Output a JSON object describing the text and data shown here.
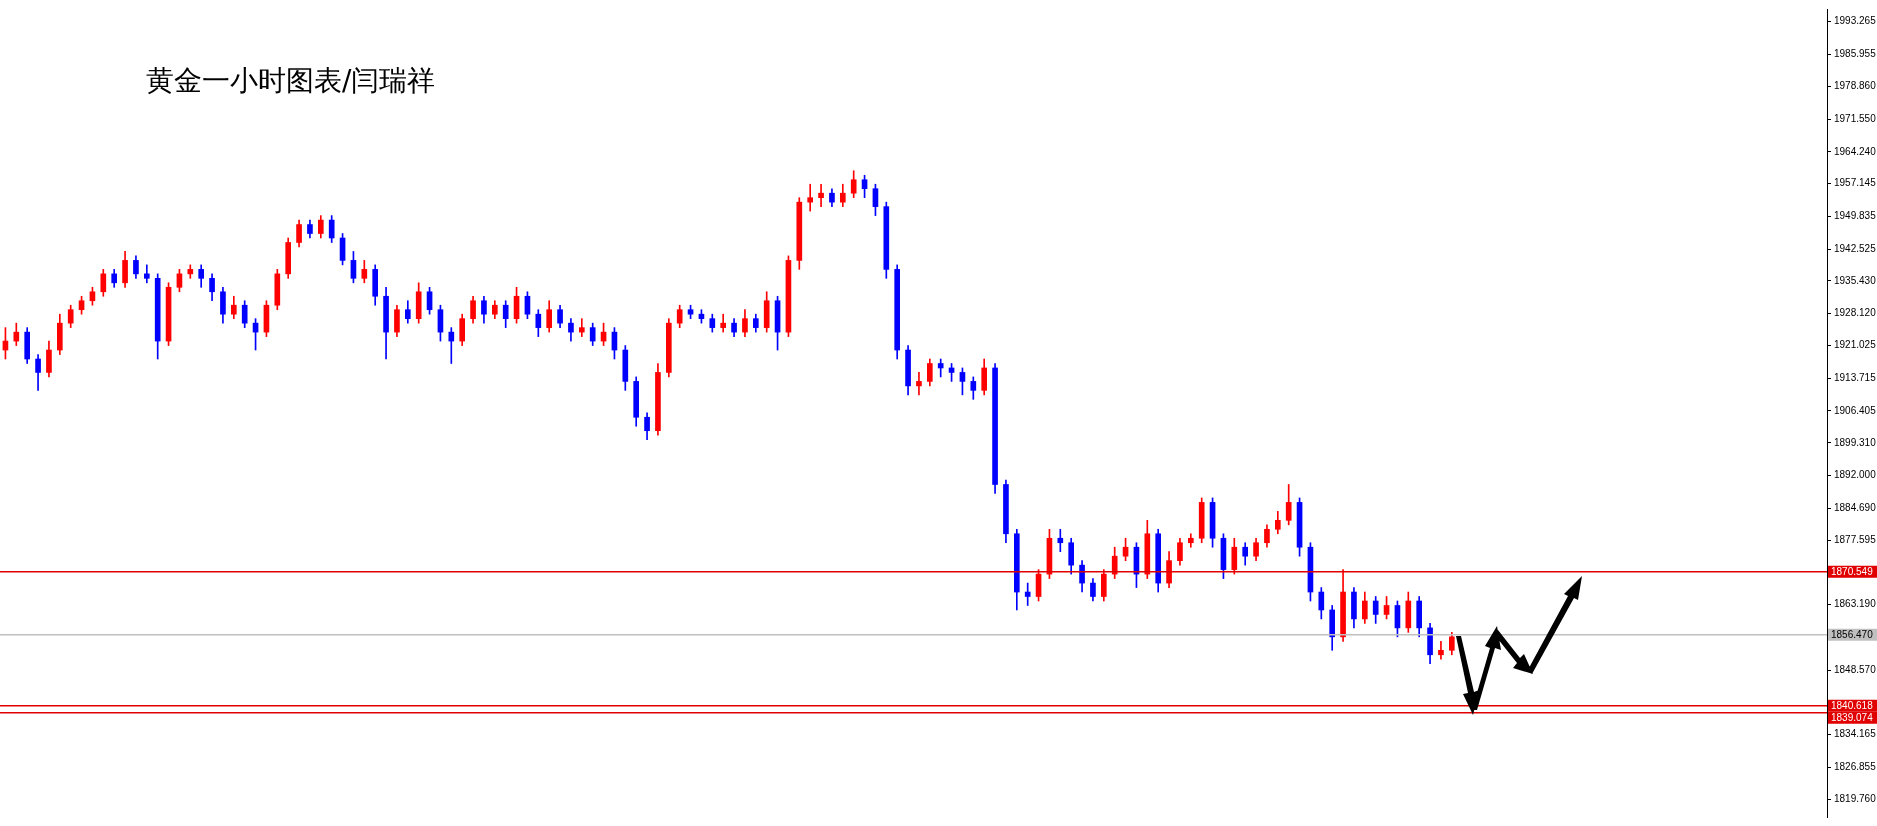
{
  "chart_data": {
    "type": "candlestick",
    "title": "黄金一小时图表/闫瑞祥",
    "categories": [
      null,
      null,
      null,
      null,
      null,
      null,
      null,
      null,
      null,
      null,
      null,
      null,
      null,
      null,
      null,
      null,
      null,
      null,
      null,
      null,
      null,
      null,
      null,
      null,
      null,
      null,
      null,
      null,
      null,
      null,
      null,
      null,
      null,
      null,
      null,
      null,
      null,
      null,
      null,
      null,
      null,
      null,
      null,
      null,
      null,
      null,
      null,
      null,
      null,
      null,
      null,
      null,
      null,
      null,
      null,
      null,
      null,
      null,
      null,
      null,
      null,
      null,
      null,
      null,
      null,
      null,
      null,
      null,
      null,
      null,
      null,
      null,
      null,
      null,
      null,
      null,
      null,
      null,
      null,
      null,
      null,
      null,
      null,
      null,
      null,
      null,
      null,
      null,
      null,
      null,
      null,
      null,
      null,
      null,
      null,
      null,
      null,
      null,
      null,
      null,
      null,
      null,
      null,
      null,
      null,
      null,
      null,
      null,
      null,
      null,
      null,
      null,
      null,
      null,
      null,
      null,
      null,
      null,
      null,
      null,
      null,
      null,
      null,
      null,
      null,
      null,
      null,
      null,
      null,
      null,
      null,
      null,
      null,
      null,
      null,
      null,
      null,
      null,
      null,
      null,
      null,
      null,
      null,
      null,
      null,
      null,
      null,
      null,
      null,
      null,
      null,
      null,
      null,
      null,
      null,
      null,
      null,
      null,
      null,
      null,
      null,
      null,
      null,
      null,
      null,
      null,
      null,
      null
    ],
    "ohlc": [
      [
        1920,
        1925,
        1918,
        1922
      ],
      [
        1922,
        1926,
        1921,
        1924
      ],
      [
        1924,
        1925,
        1917,
        1918
      ],
      [
        1918,
        1919,
        1911,
        1915
      ],
      [
        1915,
        1922,
        1914,
        1920
      ],
      [
        1920,
        1928,
        1919,
        1926
      ],
      [
        1926,
        1930,
        1925,
        1929
      ],
      [
        1929,
        1932,
        1928,
        1931
      ],
      [
        1931,
        1934,
        1930,
        1933
      ],
      [
        1933,
        1938,
        1932,
        1937
      ],
      [
        1937,
        1938,
        1934,
        1935
      ],
      [
        1935,
        1942,
        1934,
        1940
      ],
      [
        1940,
        1941,
        1936,
        1937
      ],
      [
        1937,
        1939,
        1935,
        1936
      ],
      [
        1936,
        1937,
        1918,
        1922
      ],
      [
        1922,
        1935,
        1921,
        1934
      ],
      [
        1934,
        1938,
        1933,
        1937
      ],
      [
        1937,
        1939,
        1936,
        1938
      ],
      [
        1938,
        1939,
        1934,
        1936
      ],
      [
        1936,
        1937,
        1931,
        1933
      ],
      [
        1933,
        1934,
        1926,
        1928
      ],
      [
        1928,
        1932,
        1927,
        1930
      ],
      [
        1930,
        1931,
        1925,
        1926
      ],
      [
        1926,
        1927,
        1920,
        1924
      ],
      [
        1924,
        1931,
        1923,
        1930
      ],
      [
        1930,
        1938,
        1929,
        1937
      ],
      [
        1937,
        1945,
        1936,
        1944
      ],
      [
        1944,
        1949,
        1943,
        1948
      ],
      [
        1948,
        1949,
        1945,
        1946
      ],
      [
        1946,
        1950,
        1945,
        1949
      ],
      [
        1949,
        1950,
        1944,
        1945
      ],
      [
        1945,
        1946,
        1939,
        1940
      ],
      [
        1940,
        1942,
        1935,
        1936
      ],
      [
        1936,
        1940,
        1935,
        1938
      ],
      [
        1938,
        1939,
        1930,
        1932
      ],
      [
        1932,
        1934,
        1918,
        1924
      ],
      [
        1924,
        1930,
        1923,
        1929
      ],
      [
        1929,
        1931,
        1926,
        1927
      ],
      [
        1927,
        1935,
        1926,
        1933
      ],
      [
        1933,
        1934,
        1928,
        1929
      ],
      [
        1929,
        1930,
        1922,
        1924
      ],
      [
        1924,
        1925,
        1917,
        1922
      ],
      [
        1922,
        1928,
        1921,
        1927
      ],
      [
        1927,
        1932,
        1926,
        1931
      ],
      [
        1931,
        1932,
        1926,
        1928
      ],
      [
        1928,
        1931,
        1927,
        1930
      ],
      [
        1930,
        1931,
        1925,
        1927
      ],
      [
        1927,
        1934,
        1926,
        1932
      ],
      [
        1932,
        1933,
        1927,
        1928
      ],
      [
        1928,
        1929,
        1923,
        1925
      ],
      [
        1925,
        1931,
        1924,
        1929
      ],
      [
        1929,
        1930,
        1925,
        1926
      ],
      [
        1926,
        1927,
        1922,
        1924
      ],
      [
        1924,
        1927,
        1923,
        1925
      ],
      [
        1925,
        1926,
        1921,
        1922
      ],
      [
        1922,
        1926,
        1921,
        1924
      ],
      [
        1924,
        1925,
        1918,
        1920
      ],
      [
        1920,
        1921,
        1911,
        1913
      ],
      [
        1913,
        1914,
        1903,
        1905
      ],
      [
        1905,
        1906,
        1900,
        1902
      ],
      [
        1902,
        1917,
        1901,
        1915
      ],
      [
        1915,
        1927,
        1914,
        1926
      ],
      [
        1926,
        1930,
        1925,
        1929
      ],
      [
        1929,
        1930,
        1927,
        1928
      ],
      [
        1928,
        1929,
        1926,
        1927
      ],
      [
        1927,
        1928,
        1924,
        1925
      ],
      [
        1925,
        1928,
        1924,
        1926
      ],
      [
        1926,
        1927,
        1923,
        1924
      ],
      [
        1924,
        1929,
        1923,
        1927
      ],
      [
        1927,
        1928,
        1924,
        1925
      ],
      [
        1925,
        1933,
        1924,
        1931
      ],
      [
        1931,
        1932,
        1920,
        1924
      ],
      [
        1924,
        1941,
        1923,
        1940
      ],
      [
        1940,
        1954,
        1938,
        1953
      ],
      [
        1953,
        1957,
        1951,
        1954
      ],
      [
        1954,
        1957,
        1952,
        1955
      ],
      [
        1955,
        1956,
        1952,
        1953
      ],
      [
        1953,
        1957,
        1952,
        1955
      ],
      [
        1955,
        1960,
        1954,
        1958
      ],
      [
        1958,
        1959,
        1954,
        1956
      ],
      [
        1956,
        1957,
        1950,
        1952
      ],
      [
        1952,
        1953,
        1936,
        1938
      ],
      [
        1938,
        1939,
        1918,
        1920
      ],
      [
        1920,
        1921,
        1910,
        1912
      ],
      [
        1912,
        1915,
        1910,
        1913
      ],
      [
        1913,
        1918,
        1912,
        1917
      ],
      [
        1917,
        1918,
        1914,
        1916
      ],
      [
        1916,
        1917,
        1913,
        1915
      ],
      [
        1915,
        1916,
        1910,
        1913
      ],
      [
        1913,
        1914,
        1909,
        1911
      ],
      [
        1911,
        1918,
        1910,
        1916
      ],
      [
        1916,
        1917,
        1888,
        1890
      ],
      [
        1890,
        1891,
        1877,
        1879
      ],
      [
        1879,
        1880,
        1862,
        1866
      ],
      [
        1866,
        1868,
        1863,
        1865
      ],
      [
        1865,
        1871,
        1864,
        1870
      ],
      [
        1870,
        1880,
        1869,
        1878
      ],
      [
        1878,
        1880,
        1875,
        1877
      ],
      [
        1877,
        1878,
        1870,
        1872
      ],
      [
        1872,
        1873,
        1866,
        1868
      ],
      [
        1868,
        1869,
        1864,
        1865
      ],
      [
        1865,
        1871,
        1864,
        1870
      ],
      [
        1870,
        1876,
        1869,
        1874
      ],
      [
        1874,
        1878,
        1873,
        1876
      ],
      [
        1876,
        1877,
        1867,
        1870
      ],
      [
        1870,
        1882,
        1869,
        1879
      ],
      [
        1879,
        1880,
        1866,
        1868
      ],
      [
        1868,
        1875,
        1867,
        1873
      ],
      [
        1873,
        1878,
        1872,
        1877
      ],
      [
        1877,
        1879,
        1876,
        1878
      ],
      [
        1878,
        1887,
        1877,
        1886
      ],
      [
        1886,
        1887,
        1876,
        1878
      ],
      [
        1878,
        1879,
        1869,
        1871
      ],
      [
        1871,
        1878,
        1870,
        1876
      ],
      [
        1876,
        1877,
        1872,
        1874
      ],
      [
        1874,
        1878,
        1873,
        1877
      ],
      [
        1877,
        1881,
        1876,
        1880
      ],
      [
        1880,
        1884,
        1879,
        1882
      ],
      [
        1882,
        1890,
        1881,
        1886
      ],
      [
        1886,
        1887,
        1874,
        1876
      ],
      [
        1876,
        1877,
        1864,
        1866
      ],
      [
        1866,
        1867,
        1860,
        1862
      ],
      [
        1862,
        1863,
        1853,
        1856
      ],
      [
        1856,
        1871,
        1855,
        1866
      ],
      [
        1866,
        1867,
        1858,
        1860
      ],
      [
        1860,
        1866,
        1859,
        1864
      ],
      [
        1864,
        1865,
        1859,
        1861
      ],
      [
        1861,
        1865,
        1860,
        1863
      ],
      [
        1863,
        1864,
        1856,
        1858
      ],
      [
        1858,
        1866,
        1857,
        1864
      ],
      [
        1864,
        1865,
        1856,
        1858
      ],
      [
        1858,
        1859,
        1850,
        1852
      ],
      [
        1852,
        1855,
        1851,
        1853
      ],
      [
        1853,
        1857,
        1852,
        1856
      ],
      null,
      null,
      null,
      null,
      null,
      null,
      null,
      null,
      null,
      null,
      null,
      null,
      null,
      null,
      null,
      null,
      null,
      null,
      null,
      null,
      null,
      null,
      null,
      null,
      null,
      null,
      null,
      null,
      null,
      null,
      null,
      null,
      null,
      null
    ],
    "colors": [
      "#ff0000",
      "#ff0000",
      "#0000ff",
      "#0000ff",
      "#ff0000",
      "#ff0000",
      "#ff0000",
      "#ff0000",
      "#ff0000",
      "#ff0000",
      "#0000ff",
      "#ff0000",
      "#0000ff",
      "#0000ff",
      "#0000ff",
      "#ff0000",
      "#ff0000",
      "#ff0000",
      "#0000ff",
      "#0000ff",
      "#0000ff",
      "#ff0000",
      "#0000ff",
      "#0000ff",
      "#ff0000",
      "#ff0000",
      "#ff0000",
      "#ff0000",
      "#0000ff",
      "#ff0000",
      "#0000ff",
      "#0000ff",
      "#0000ff",
      "#ff0000",
      "#0000ff",
      "#0000ff",
      "#ff0000",
      "#0000ff",
      "#ff0000",
      "#0000ff",
      "#0000ff",
      "#0000ff",
      "#ff0000",
      "#ff0000",
      "#0000ff",
      "#ff0000",
      "#0000ff",
      "#ff0000",
      "#0000ff",
      "#0000ff",
      "#ff0000",
      "#0000ff",
      "#0000ff",
      "#ff0000",
      "#0000ff",
      "#ff0000",
      "#0000ff",
      "#0000ff",
      "#0000ff",
      "#0000ff",
      "#ff0000",
      "#ff0000",
      "#ff0000",
      "#0000ff",
      "#0000ff",
      "#0000ff",
      "#ff0000",
      "#0000ff",
      "#ff0000",
      "#0000ff",
      "#ff0000",
      "#0000ff",
      "#ff0000",
      "#ff0000",
      "#ff0000",
      "#ff0000",
      "#0000ff",
      "#ff0000",
      "#ff0000",
      "#0000ff",
      "#0000ff",
      "#0000ff",
      "#0000ff",
      "#0000ff",
      "#ff0000",
      "#ff0000",
      "#0000ff",
      "#0000ff",
      "#0000ff",
      "#0000ff",
      "#ff0000",
      "#0000ff",
      "#0000ff",
      "#0000ff",
      "#0000ff",
      "#ff0000",
      "#ff0000",
      "#0000ff",
      "#0000ff",
      "#0000ff",
      "#0000ff",
      "#ff0000",
      "#ff0000",
      "#ff0000",
      "#0000ff",
      "#ff0000",
      "#0000ff",
      "#ff0000",
      "#ff0000",
      "#ff0000",
      "#ff0000",
      "#0000ff",
      "#0000ff",
      "#ff0000",
      "#0000ff",
      "#ff0000",
      "#ff0000",
      "#ff0000",
      "#ff0000",
      "#0000ff",
      "#0000ff",
      "#0000ff",
      "#0000ff",
      "#ff0000",
      "#0000ff",
      "#ff0000",
      "#0000ff",
      "#ff0000",
      "#0000ff",
      "#ff0000",
      "#0000ff",
      "#0000ff",
      "#ff0000",
      "#ff0000",
      null,
      null,
      null,
      null,
      null,
      null,
      null,
      null,
      null,
      null,
      null,
      null,
      null,
      null,
      null,
      null,
      null,
      null,
      null,
      null,
      null,
      null,
      null,
      null,
      null,
      null,
      null,
      null,
      null,
      null,
      null,
      null,
      null,
      null
    ],
    "ylim": [
      1815.8,
      1996.1
    ],
    "yticks": [
      {
        "value": 1993.265,
        "label": "1993.265"
      },
      {
        "value": 1985.955,
        "label": "1985.955"
      },
      {
        "value": 1978.86,
        "label": "1978.860"
      },
      {
        "value": 1971.55,
        "label": "1971.550"
      },
      {
        "value": 1964.24,
        "label": "1964.240"
      },
      {
        "value": 1957.145,
        "label": "1957.145"
      },
      {
        "value": 1949.835,
        "label": "1949.835"
      },
      {
        "value": 1942.525,
        "label": "1942.525"
      },
      {
        "value": 1935.43,
        "label": "1935.430"
      },
      {
        "value": 1928.12,
        "label": "1928.120"
      },
      {
        "value": 1921.025,
        "label": "1921.025"
      },
      {
        "value": 1913.715,
        "label": "1913.715"
      },
      {
        "value": 1906.405,
        "label": "1906.405"
      },
      {
        "value": 1899.31,
        "label": "1899.310"
      },
      {
        "value": 1892,
        "label": "1892.000"
      },
      {
        "value": 1884.69,
        "label": "1884.690"
      },
      {
        "value": 1877.595,
        "label": "1877.595"
      },
      {
        "value": 1863.19,
        "label": "1863.190"
      },
      {
        "value": 1848.57,
        "label": "1848.570"
      },
      {
        "value": 1834.165,
        "label": "1834.165"
      },
      {
        "value": 1826.855,
        "label": "1826.855"
      },
      {
        "value": 1819.76,
        "label": "1819.760"
      }
    ],
    "ref_lines": [
      {
        "axis": "y",
        "value": 1870.549,
        "label": "1870.549",
        "color": "#e00000"
      },
      {
        "axis": "y",
        "value": 1856.47,
        "label": "1856.470",
        "color": "#c0c0c0"
      },
      {
        "axis": "y",
        "value": 1840.618,
        "label": "1840.618",
        "color": "#e00000"
      },
      {
        "axis": "y",
        "value": 1839.074,
        "label": "1839.074",
        "color": "#e00000"
      }
    ],
    "tick_labels": "y"
  }
}
